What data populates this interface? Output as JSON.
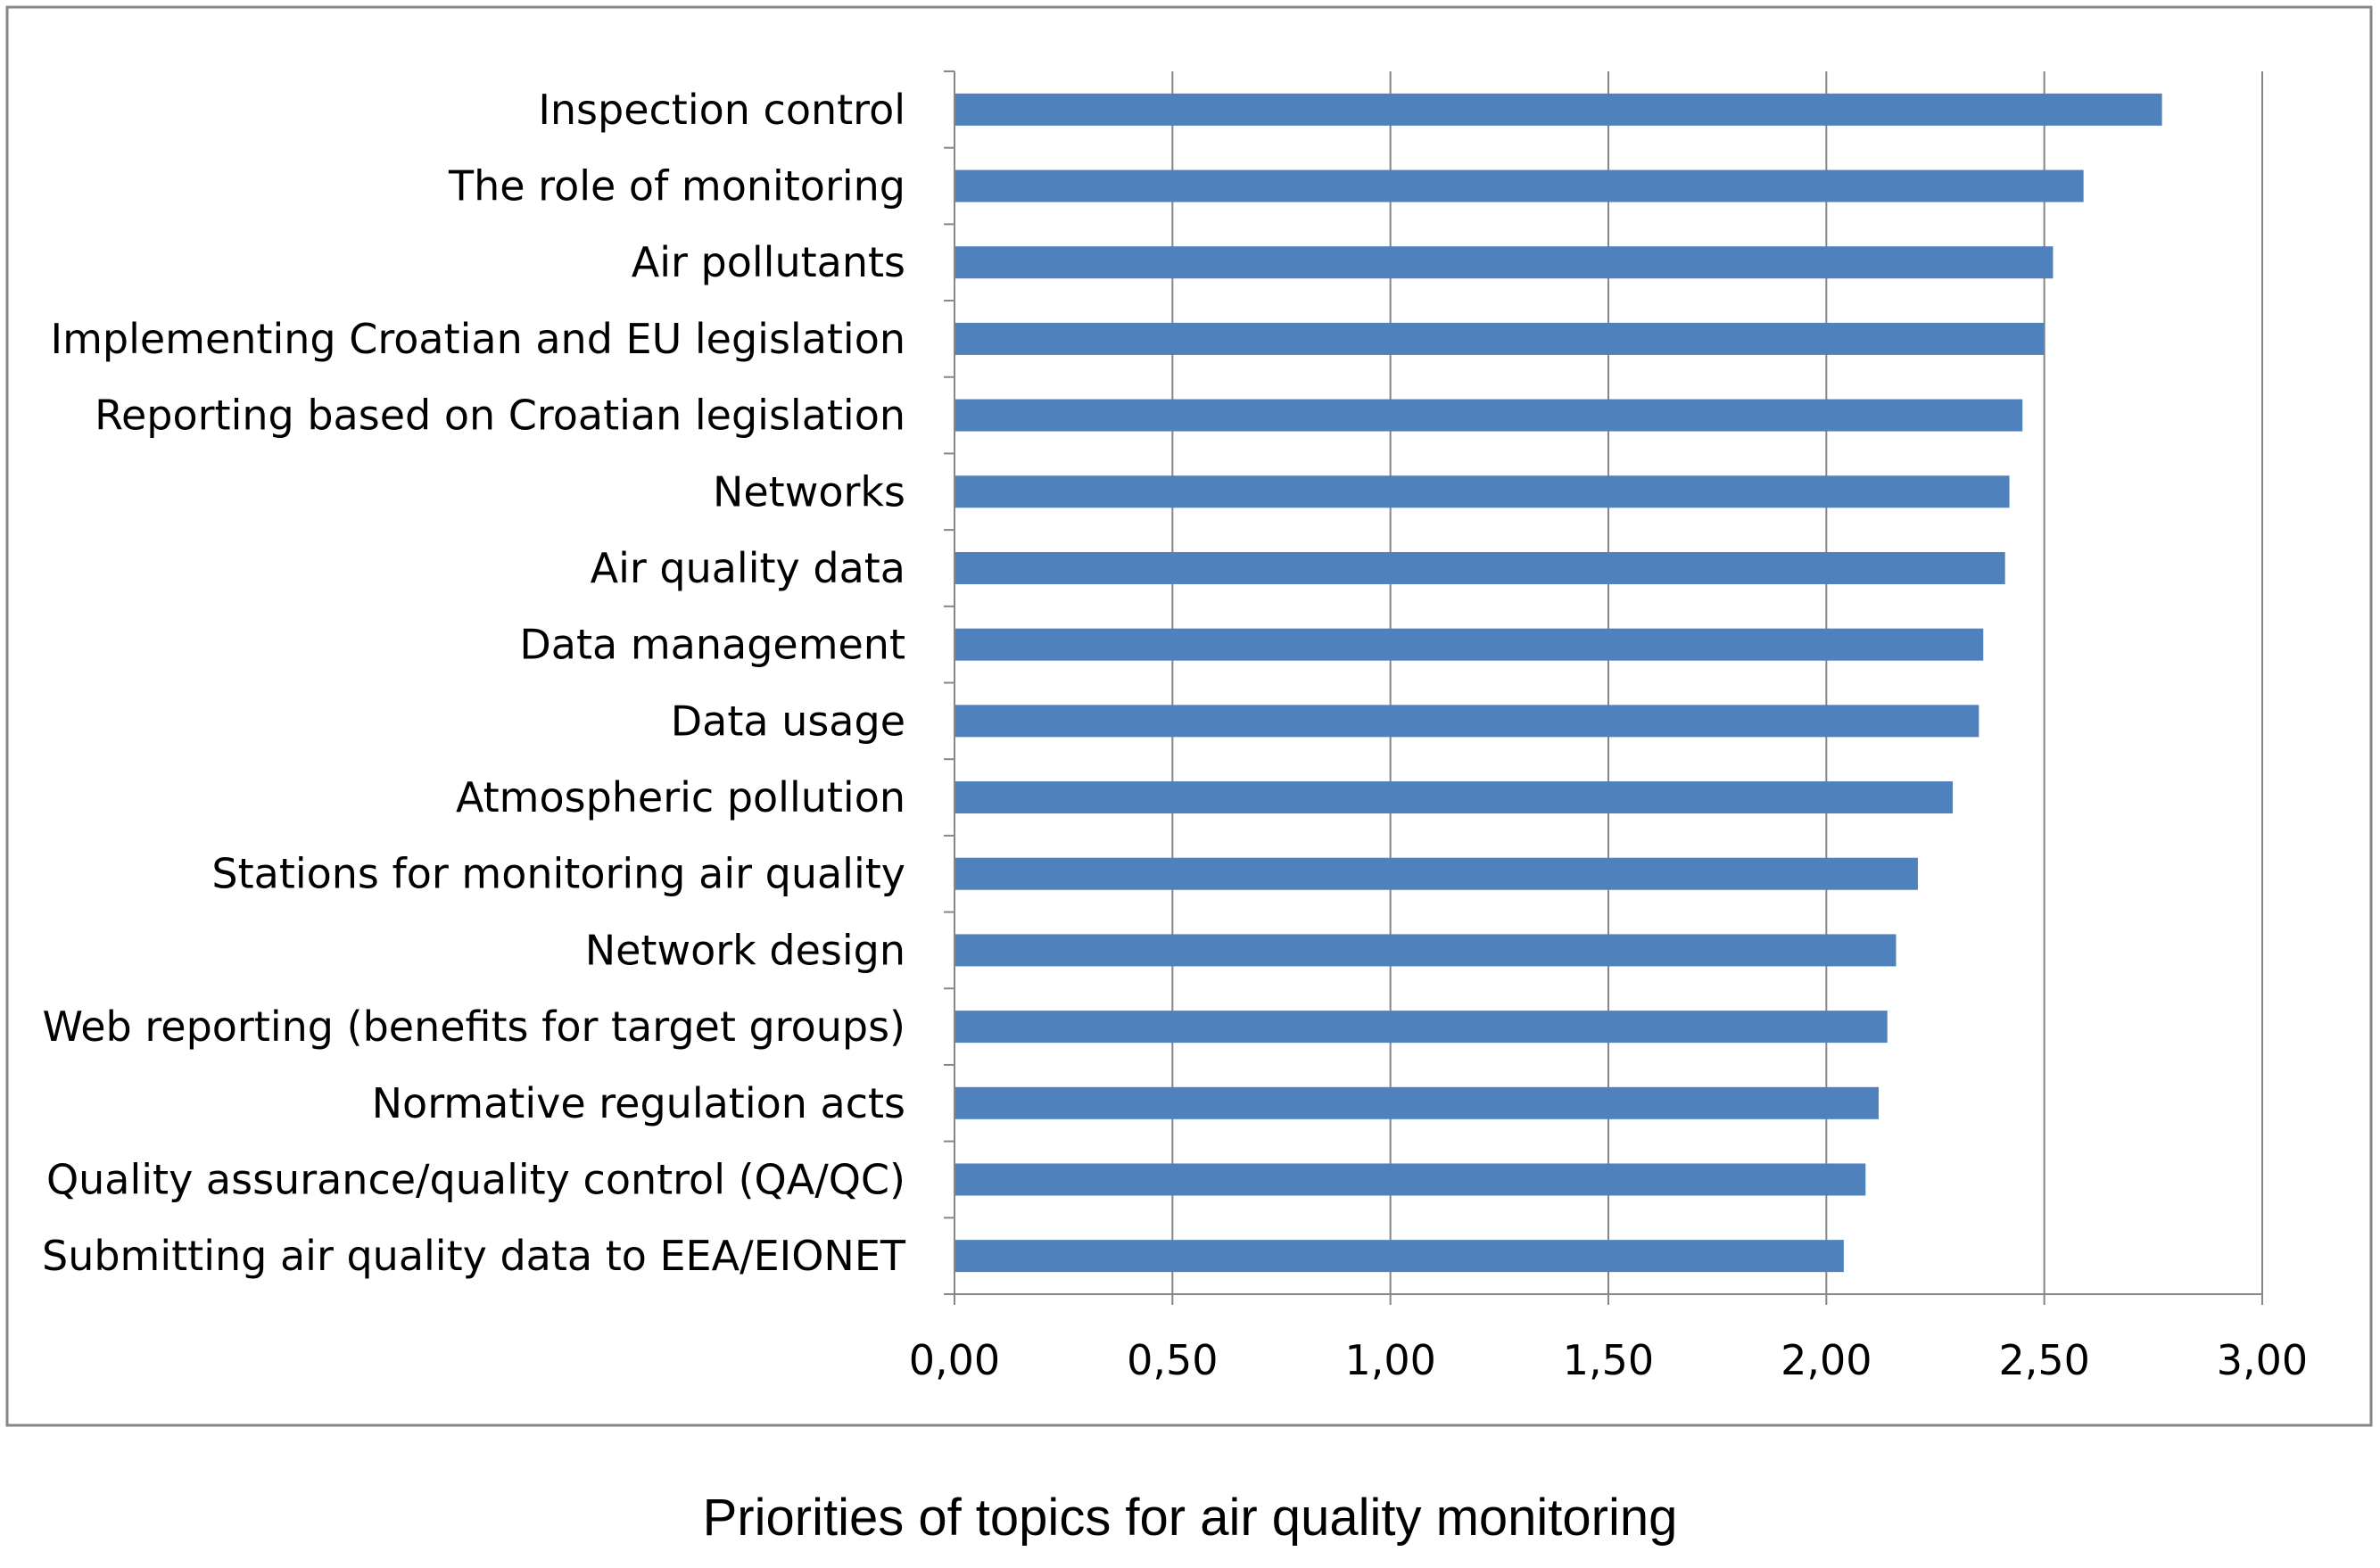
{
  "caption": "Priorities of topics for air quality monitoring",
  "colors": {
    "bar": "#4F81BD",
    "grid": "#868686",
    "frame": "#868686",
    "text": "#000000"
  },
  "chart_data": {
    "type": "bar",
    "orientation": "horizontal",
    "title": "",
    "xlabel": "",
    "ylabel": "",
    "xlim": [
      0,
      3
    ],
    "x_ticks": [
      0,
      0.5,
      1,
      1.5,
      2,
      2.5,
      3
    ],
    "x_tick_labels": [
      "0,00",
      "0,50",
      "1,00",
      "1,50",
      "2,00",
      "2,50",
      "3,00"
    ],
    "grid": "vertical major gridlines",
    "legend": "none",
    "categories": [
      "Inspection control",
      "The role of monitoring",
      "Air pollutants",
      "Implementing  Croatian and EU legislation",
      "Reporting based on Croatian legislation",
      "Networks",
      "Air quality data",
      "Data management",
      "Data usage",
      "Atmospheric pollution",
      "Stations for monitoring air quality",
      "Network design",
      "Web reporting (benefits for target groups)",
      "Normative regulation acts",
      "Quality assurance/quality control (QA/QC)",
      "Submitting air quality data to EEA/EIONET"
    ],
    "values": [
      2.77,
      2.59,
      2.52,
      2.5,
      2.45,
      2.42,
      2.41,
      2.36,
      2.35,
      2.29,
      2.21,
      2.16,
      2.14,
      2.12,
      2.09,
      2.04
    ]
  }
}
